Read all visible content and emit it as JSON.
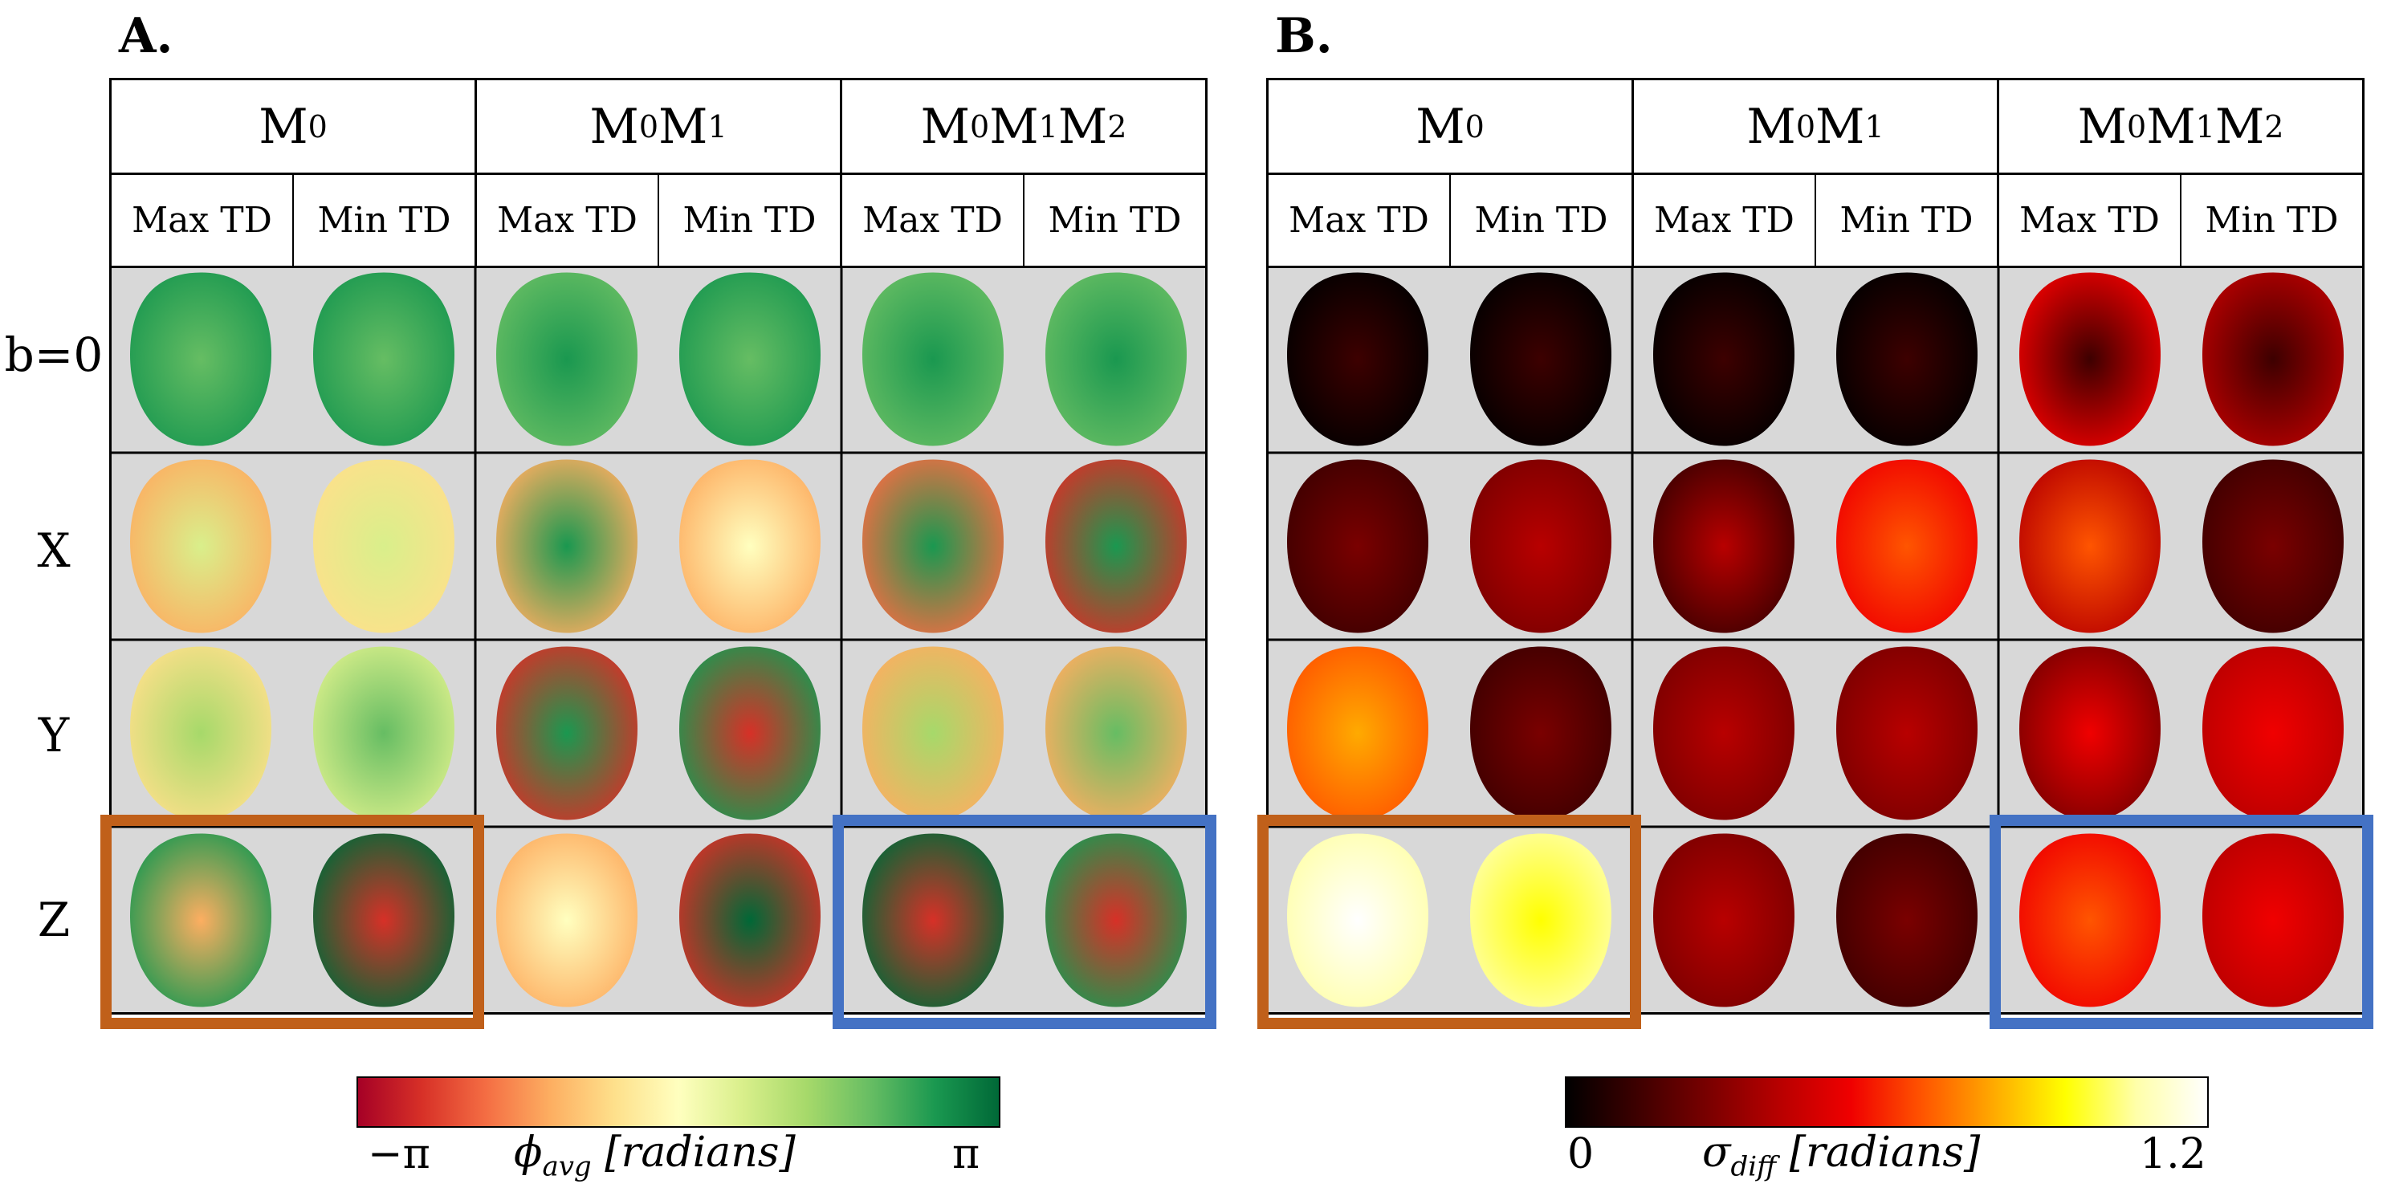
{
  "panels": [
    {
      "letter": "A.",
      "groups": [
        {
          "base": "M",
          "subs": [
            "0"
          ]
        },
        {
          "base": "M",
          "subs": [
            "0",
            "1"
          ]
        },
        {
          "base": "M",
          "subs": [
            "0",
            "1",
            "2"
          ]
        }
      ],
      "subheaders": [
        "Max TD",
        "Min TD",
        "Max TD",
        "Min TD",
        "Max TD",
        "Min TD"
      ],
      "colorbar": {
        "min_label": "−π",
        "max_label": "π",
        "symbol": "ϕ",
        "subscript": "avg",
        "unit": "[radians]"
      },
      "colors": [
        "#a50026",
        "#d73027",
        "#f46d43",
        "#fdae61",
        "#fee08b",
        "#ffffbf",
        "#d9ef8b",
        "#a6d96a",
        "#66bd63",
        "#1a9850",
        "#006837"
      ]
    },
    {
      "letter": "B.",
      "groups": [
        {
          "base": "M",
          "subs": [
            "0"
          ]
        },
        {
          "base": "M",
          "subs": [
            "0",
            "1"
          ]
        },
        {
          "base": "M",
          "subs": [
            "0",
            "1",
            "2"
          ]
        }
      ],
      "subheaders": [
        "Max TD",
        "Min TD",
        "Max TD",
        "Min TD",
        "Max TD",
        "Min TD"
      ],
      "colorbar": {
        "min_label": "0",
        "max_label": "1.2",
        "symbol": "σ",
        "subscript": "diff",
        "unit": "[radians]"
      },
      "colors": [
        "#000000",
        "#3d0000",
        "#7a0000",
        "#b80000",
        "#f00000",
        "#ff5500",
        "#ffaa00",
        "#ffff00",
        "#ffffaa",
        "#ffffff"
      ]
    }
  ],
  "row_labels": [
    "b=0",
    "X",
    "Y",
    "Z"
  ],
  "highlight_colors": {
    "orange": "#c0601a",
    "blue": "#4472c4"
  },
  "background": "#d8d8d8"
}
